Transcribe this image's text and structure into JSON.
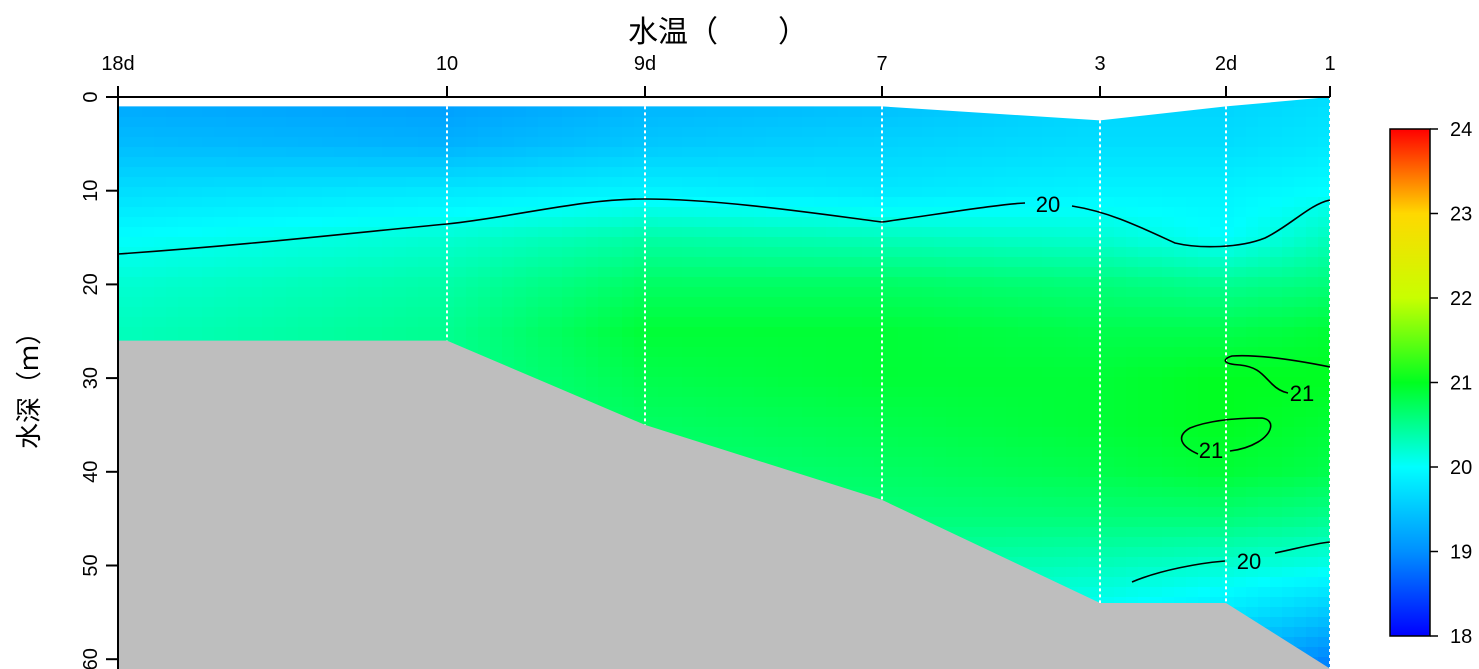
{
  "chart_data": {
    "type": "heatmap",
    "title": "水温（　　）",
    "ylabel": "水深（ｍ）",
    "xlabel": "",
    "stations": [
      "18d",
      "10",
      "9d",
      "7",
      "3",
      "2d",
      "1"
    ],
    "ylim": [
      0,
      61
    ],
    "yticks": [
      0,
      10,
      20,
      30,
      40,
      50,
      60
    ],
    "legend": {
      "position": "right",
      "min": 18,
      "max": 24,
      "ticks": [
        18,
        19,
        20,
        21,
        22,
        23,
        24
      ],
      "colors": [
        "#0000ff",
        "#0090ff",
        "#00ffff",
        "#00ff20",
        "#c8ff00",
        "#ffd800",
        "#ff0000"
      ]
    },
    "surface_depth": [
      1,
      1,
      1,
      1,
      2.5,
      1,
      0
    ],
    "bottom_depth": [
      26,
      26,
      35,
      43,
      54,
      54,
      61
    ],
    "temperature_grid": {
      "depths": [
        0,
        5,
        10,
        15,
        20,
        25,
        30,
        35,
        40,
        45,
        50,
        55,
        60
      ],
      "values": [
        [
          19.2,
          19.1,
          19.3,
          19.4,
          19.6,
          19.6,
          19.7
        ],
        [
          19.4,
          19.3,
          19.5,
          19.6,
          19.7,
          19.7,
          19.8
        ],
        [
          19.7,
          19.8,
          19.9,
          19.8,
          19.9,
          19.9,
          20.0
        ],
        [
          20.0,
          20.2,
          20.4,
          20.3,
          20.2,
          20.0,
          20.3
        ],
        [
          20.2,
          20.4,
          20.7,
          20.7,
          20.6,
          20.5,
          20.6
        ],
        [
          20.3,
          20.5,
          20.9,
          20.9,
          20.8,
          20.8,
          20.9
        ],
        [
          20.3,
          20.5,
          20.8,
          20.9,
          20.9,
          21.0,
          21.0
        ],
        [
          20.3,
          20.5,
          20.7,
          20.8,
          20.9,
          21.0,
          20.9
        ],
        [
          20.3,
          20.5,
          20.6,
          20.7,
          20.8,
          20.9,
          20.8
        ],
        [
          20.3,
          20.5,
          20.5,
          20.6,
          20.6,
          20.6,
          20.5
        ],
        [
          20.3,
          20.5,
          20.4,
          20.4,
          20.3,
          20.2,
          20.1
        ],
        [
          20.3,
          20.5,
          20.3,
          20.2,
          20.0,
          19.8,
          19.5
        ],
        [
          20.3,
          20.5,
          20.2,
          20.1,
          19.8,
          19.3,
          18.9
        ]
      ]
    },
    "contours": [
      {
        "level": 20,
        "label": "20"
      },
      {
        "level": 21,
        "label": "21"
      },
      {
        "level": 21,
        "label": "21"
      },
      {
        "level": 20,
        "label": "20"
      }
    ],
    "grid": false
  }
}
